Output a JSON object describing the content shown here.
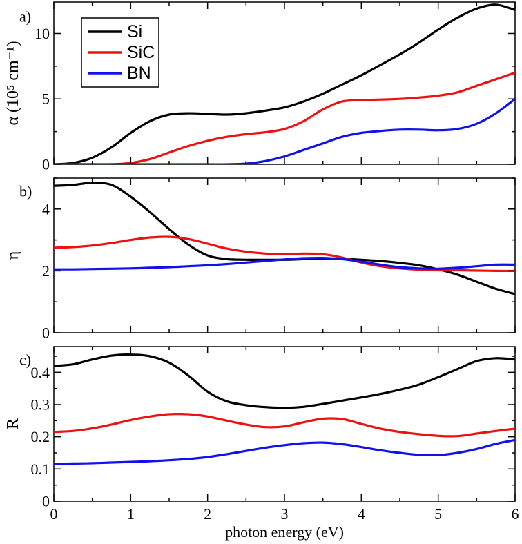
{
  "series_styles": [
    {
      "name": "Si",
      "color": "#000000"
    },
    {
      "name": "SiC",
      "color": "#ee1111"
    },
    {
      "name": "BN",
      "color": "#1111ee"
    }
  ],
  "shared_x": {
    "xlabel": "photon energy (eV)",
    "xlim": [
      0,
      6
    ],
    "xticks": [
      0,
      1,
      2,
      3,
      4,
      5,
      6
    ]
  },
  "chart_data": [
    {
      "type": "line",
      "panel_label": "a)",
      "ylabel": "α (10⁵ cm⁻¹)",
      "ylim": [
        0,
        12.4
      ],
      "yticks": [
        0,
        5,
        10
      ],
      "ytick_labels": [
        "0",
        "5",
        "10"
      ],
      "legend": {
        "position": "top-left",
        "entries": [
          "Si",
          "SiC",
          "BN"
        ]
      },
      "x": [
        0,
        0.25,
        0.5,
        0.75,
        1.0,
        1.25,
        1.5,
        1.75,
        2.0,
        2.25,
        2.5,
        2.75,
        3.0,
        3.25,
        3.5,
        3.75,
        4.0,
        4.25,
        4.5,
        4.75,
        5.0,
        5.25,
        5.5,
        5.75,
        6.0
      ],
      "series": [
        {
          "name": "Si",
          "values": [
            0.0,
            0.1,
            0.5,
            1.3,
            2.4,
            3.3,
            3.8,
            3.9,
            3.85,
            3.8,
            3.9,
            4.1,
            4.35,
            4.8,
            5.4,
            6.1,
            6.8,
            7.6,
            8.4,
            9.3,
            10.3,
            11.2,
            11.9,
            12.2,
            11.8
          ]
        },
        {
          "name": "SiC",
          "values": [
            0.0,
            0.0,
            0.0,
            0.0,
            0.1,
            0.4,
            0.9,
            1.4,
            1.8,
            2.1,
            2.3,
            2.45,
            2.7,
            3.3,
            4.2,
            4.8,
            4.9,
            4.95,
            5.0,
            5.1,
            5.25,
            5.5,
            6.0,
            6.5,
            7.0
          ]
        },
        {
          "name": "BN",
          "values": [
            0.0,
            0.0,
            0.0,
            0.0,
            0.0,
            0.0,
            0.0,
            0.0,
            0.0,
            0.0,
            0.05,
            0.25,
            0.6,
            1.1,
            1.6,
            2.1,
            2.4,
            2.55,
            2.65,
            2.65,
            2.6,
            2.7,
            3.1,
            3.9,
            5.0
          ]
        }
      ]
    },
    {
      "type": "line",
      "panel_label": "b)",
      "ylabel": "η",
      "ylim": [
        0,
        5
      ],
      "yticks": [
        0,
        2,
        4
      ],
      "ytick_labels": [
        "0",
        "2",
        "4"
      ],
      "x": [
        0,
        0.25,
        0.5,
        0.75,
        1.0,
        1.25,
        1.5,
        1.75,
        2.0,
        2.25,
        2.5,
        2.75,
        3.0,
        3.25,
        3.5,
        3.75,
        4.0,
        4.25,
        4.5,
        4.75,
        5.0,
        5.25,
        5.5,
        5.75,
        6.0
      ],
      "series": [
        {
          "name": "Si",
          "values": [
            4.75,
            4.78,
            4.85,
            4.78,
            4.4,
            3.9,
            3.35,
            2.85,
            2.5,
            2.38,
            2.36,
            2.36,
            2.36,
            2.38,
            2.4,
            2.39,
            2.36,
            2.32,
            2.26,
            2.18,
            2.05,
            1.88,
            1.65,
            1.42,
            1.25
          ]
        },
        {
          "name": "SiC",
          "values": [
            2.75,
            2.77,
            2.82,
            2.9,
            3.0,
            3.08,
            3.1,
            3.03,
            2.88,
            2.72,
            2.62,
            2.56,
            2.54,
            2.56,
            2.54,
            2.43,
            2.27,
            2.15,
            2.08,
            2.04,
            2.02,
            2.02,
            2.01,
            2.0,
            2.0
          ]
        },
        {
          "name": "BN",
          "values": [
            2.05,
            2.05,
            2.06,
            2.07,
            2.08,
            2.1,
            2.12,
            2.15,
            2.18,
            2.22,
            2.27,
            2.32,
            2.37,
            2.41,
            2.42,
            2.38,
            2.3,
            2.2,
            2.12,
            2.08,
            2.07,
            2.1,
            2.15,
            2.2,
            2.2
          ]
        }
      ]
    },
    {
      "type": "line",
      "panel_label": "c)",
      "ylabel": "R",
      "ylim": [
        0,
        0.48
      ],
      "yticks": [
        0,
        0.1,
        0.2,
        0.3,
        0.4
      ],
      "ytick_labels": [
        "0",
        "0.1",
        "0.2",
        "0.3",
        "0.4"
      ],
      "x": [
        0,
        0.25,
        0.5,
        0.75,
        1.0,
        1.25,
        1.5,
        1.75,
        2.0,
        2.25,
        2.5,
        2.75,
        3.0,
        3.25,
        3.5,
        3.75,
        4.0,
        4.25,
        4.5,
        4.75,
        5.0,
        5.25,
        5.5,
        5.75,
        6.0
      ],
      "series": [
        {
          "name": "Si",
          "values": [
            0.42,
            0.425,
            0.44,
            0.452,
            0.455,
            0.45,
            0.43,
            0.39,
            0.34,
            0.31,
            0.298,
            0.292,
            0.29,
            0.293,
            0.302,
            0.312,
            0.322,
            0.333,
            0.346,
            0.362,
            0.385,
            0.41,
            0.435,
            0.444,
            0.44
          ]
        },
        {
          "name": "SiC",
          "values": [
            0.215,
            0.218,
            0.226,
            0.238,
            0.252,
            0.263,
            0.27,
            0.27,
            0.263,
            0.25,
            0.238,
            0.23,
            0.232,
            0.245,
            0.256,
            0.255,
            0.24,
            0.225,
            0.215,
            0.208,
            0.203,
            0.202,
            0.21,
            0.218,
            0.225
          ]
        },
        {
          "name": "BN",
          "values": [
            0.116,
            0.117,
            0.118,
            0.12,
            0.122,
            0.124,
            0.127,
            0.131,
            0.137,
            0.146,
            0.156,
            0.166,
            0.174,
            0.18,
            0.182,
            0.177,
            0.168,
            0.158,
            0.15,
            0.144,
            0.143,
            0.15,
            0.162,
            0.178,
            0.19
          ]
        }
      ]
    }
  ]
}
